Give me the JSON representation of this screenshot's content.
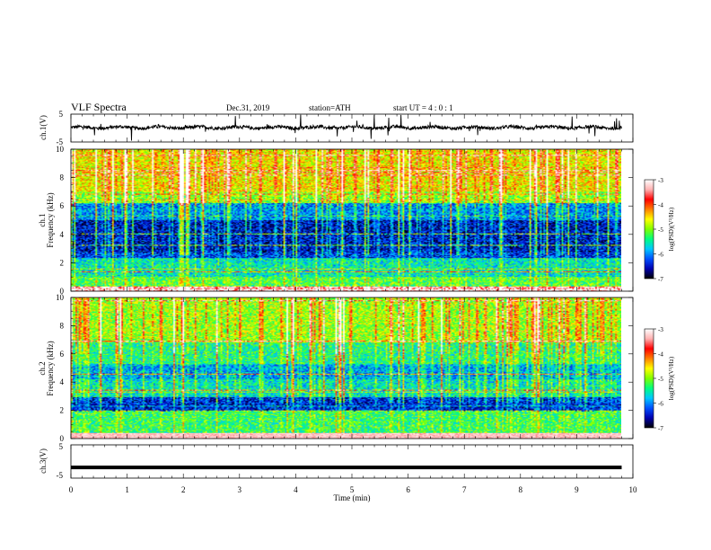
{
  "header": {
    "title": "VLF  Spectra",
    "date": "Dec.31, 2019",
    "station": "station=ATH",
    "start": "start  UT  =    4  : 0   : 1"
  },
  "chart_data": [
    {
      "type": "line",
      "panel": "ch1-waveform",
      "ylabel": "ch.1(V)",
      "ylim": [
        -5,
        5
      ],
      "yticks": [
        "5",
        "-5"
      ],
      "xlim": [
        0,
        10
      ],
      "line_color": "#000000",
      "baseline": 0.2,
      "noise_amplitude": 1.2,
      "spike_amplitude": 4.5
    },
    {
      "type": "heatmap",
      "panel": "ch1-spectrogram",
      "ylabel_channel": "ch.1",
      "ylabel": "Frequency  (kHz)",
      "ylim": [
        0,
        10
      ],
      "yticks": [
        "0",
        "2",
        "4",
        "6",
        "8",
        "10"
      ],
      "xlim": [
        0,
        10.0
      ],
      "data_end_x": 9.8,
      "colorbar": {
        "label": "log(PSD)(V²/Hz)",
        "range": [
          -7,
          -3
        ],
        "ticks": [
          "-3",
          "-4",
          "-5",
          "-6",
          "-7"
        ],
        "colors": [
          "#000000",
          "#0000b0",
          "#0050ff",
          "#00c8ff",
          "#00ff80",
          "#80ff00",
          "#ffff00",
          "#ff8000",
          "#ff0000",
          "#ffb0b0",
          "#ffffff"
        ]
      },
      "bands": [
        {
          "f": [
            0.0,
            0.3
          ],
          "level": -3.4
        },
        {
          "f": [
            0.3,
            1.0
          ],
          "level": -5.2
        },
        {
          "f": [
            1.0,
            2.3
          ],
          "level": -5.6
        },
        {
          "f": [
            2.3,
            2.7
          ],
          "level": -6.3
        },
        {
          "f": [
            2.7,
            5.0
          ],
          "level": -6.5
        },
        {
          "f": [
            5.0,
            6.2
          ],
          "level": -6.0
        },
        {
          "f": [
            6.2,
            7.0
          ],
          "level": -5.0
        },
        {
          "f": [
            7.0,
            10.0
          ],
          "level": -4.6
        }
      ]
    },
    {
      "type": "heatmap",
      "panel": "ch2-spectrogram",
      "ylabel_channel": "ch.2",
      "ylabel": "Frequency  (kHz)",
      "ylim": [
        0,
        10
      ],
      "yticks": [
        "0",
        "2",
        "4",
        "6",
        "8",
        "10"
      ],
      "xlim": [
        0,
        10.0
      ],
      "data_end_x": 9.8,
      "colorbar": {
        "label": "log(PSD)(V²/Hz)",
        "range": [
          -7,
          -3
        ],
        "ticks": [
          "-3",
          "-4",
          "-5",
          "-6",
          "-7"
        ]
      },
      "bands": [
        {
          "f": [
            0.0,
            0.4
          ],
          "level": -3.5
        },
        {
          "f": [
            0.4,
            1.9
          ],
          "level": -5.3
        },
        {
          "f": [
            1.9,
            2.9
          ],
          "level": -6.4
        },
        {
          "f": [
            2.9,
            4.2
          ],
          "level": -5.6
        },
        {
          "f": [
            4.2,
            5.3
          ],
          "level": -5.9
        },
        {
          "f": [
            5.3,
            6.8
          ],
          "level": -5.4
        },
        {
          "f": [
            6.8,
            10.0
          ],
          "level": -4.9
        }
      ]
    },
    {
      "type": "line",
      "panel": "ch3-waveform",
      "ylabel": "ch.3(V)",
      "ylim": [
        -5,
        5
      ],
      "yticks": [
        "5",
        "-5"
      ],
      "xlim": [
        0,
        10
      ],
      "xlabel": "Time  (min)",
      "xticks": [
        "0",
        "1",
        "2",
        "3",
        "4",
        "5",
        "6",
        "7",
        "8",
        "9",
        "10"
      ],
      "line_color": "#000000",
      "baseline": -1.8
    }
  ]
}
